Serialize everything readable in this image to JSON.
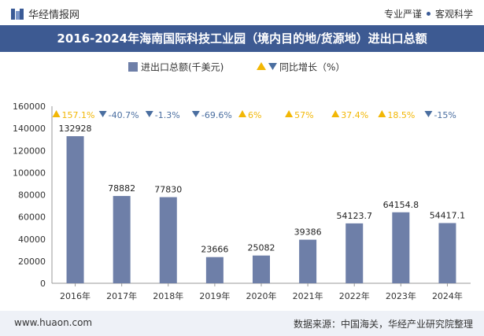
{
  "header": {
    "brand": "华经情报网",
    "tag_left": "专业严谨",
    "tag_right": "客观科学"
  },
  "colors": {
    "bar": "#6e7fa8",
    "up": "#f2b705",
    "down": "#4a6ea0",
    "header_bg": "#3d5a92"
  },
  "chart_data": {
    "type": "bar",
    "title": "2016-2024年海南国际科技工业园（境内目的地/货源地）进出口总额",
    "categories": [
      "2016年",
      "2017年",
      "2018年",
      "2019年",
      "2020年",
      "2021年",
      "2022年",
      "2023年",
      "2024年"
    ],
    "series": [
      {
        "name": "进出口总额(千美元)",
        "values": [
          132928,
          78882,
          77830,
          23666,
          25082,
          39386,
          54123.7,
          64154.8,
          54417.1
        ],
        "labels": [
          "132928",
          "78882",
          "77830",
          "23666",
          "25082",
          "39386",
          "54123.7",
          "64154.8",
          "54417.1"
        ]
      },
      {
        "name": "同比增长（%）",
        "values": [
          157.1,
          -40.7,
          -1.3,
          -69.6,
          6,
          57,
          37.4,
          18.5,
          -15
        ],
        "labels": [
          "157.1%",
          "-40.7%",
          "-1.3%",
          "-69.6%",
          "6%",
          "57%",
          "37.4%",
          "18.5%",
          "-15%"
        ]
      }
    ],
    "ylim": [
      0,
      160000
    ],
    "yticks": [
      "0",
      "20000",
      "40000",
      "60000",
      "80000",
      "100000",
      "120000",
      "140000",
      "160000"
    ],
    "grid": false,
    "legend_position": "top"
  },
  "footer": {
    "site": "www.huaon.com",
    "source": "数据来源：中国海关，华经产业研究院整理"
  }
}
